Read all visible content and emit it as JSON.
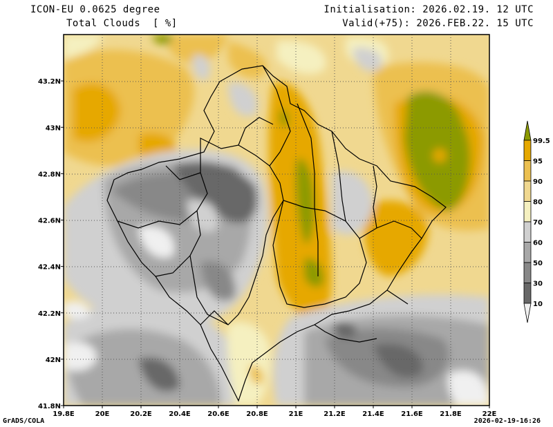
{
  "header": {
    "model_line": "ICON-EU 0.0625 degree",
    "variable_line": "Total Clouds  [ %]",
    "init_line": "Initialisation: 2026.02.19. 12 UTC",
    "valid_line": "Valid(+75): 2026.FEB.22. 15 UTC"
  },
  "footer": {
    "credit": "GrADS/COLA",
    "timestamp": "2026-02-19-16:26"
  },
  "map": {
    "lon_range": [
      19.8,
      22.0
    ],
    "lat_range": [
      41.8,
      43.4
    ],
    "x_ticks": [
      "19.8E",
      "20E",
      "20.2E",
      "20.4E",
      "20.6E",
      "20.8E",
      "21E",
      "21.2E",
      "21.4E",
      "21.6E",
      "21.8E",
      "22E"
    ],
    "y_ticks": [
      "41.8N",
      "42N",
      "42.2N",
      "42.4N",
      "42.6N",
      "42.8N",
      "43N",
      "43.2N"
    ]
  },
  "legend": {
    "levels": [
      "99.5",
      "95",
      "90",
      "80",
      "70",
      "60",
      "50",
      "30",
      "10"
    ],
    "colors": [
      "#8c9a00",
      "#e6a800",
      "#ecc050",
      "#f0d890",
      "#f5f0c0",
      "#d0d0d0",
      "#a8a8a8",
      "#888888",
      "#686868",
      "#f0f0f0"
    ]
  }
}
